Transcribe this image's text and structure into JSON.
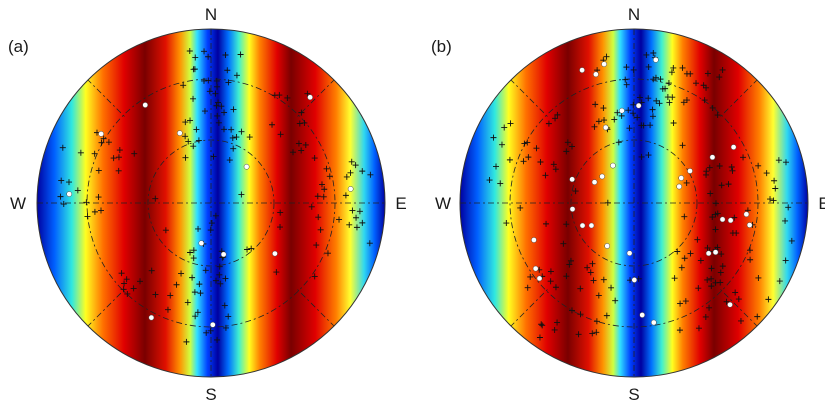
{
  "panels": [
    {
      "label": "(a)",
      "directions": {
        "north": "N",
        "south": "S",
        "west": "W",
        "east": "E"
      },
      "colormap": [
        "#00008f",
        "#0060ff",
        "#00e0ff",
        "#80ff80",
        "#ffff00",
        "#ff8000",
        "#ff1a00",
        "#7a0000"
      ],
      "marker_legend": {
        "cross": "+",
        "circle": "white-circle"
      }
    },
    {
      "label": "(b)",
      "directions": {
        "north": "N",
        "south": "S",
        "west": "W",
        "east": "E"
      },
      "colormap": [
        "#00008f",
        "#0060ff",
        "#00e0ff",
        "#80ff80",
        "#ffff00",
        "#ff8000",
        "#ff1a00",
        "#7a0000"
      ],
      "marker_legend": {
        "cross": "+",
        "circle": "white-circle"
      }
    }
  ]
}
